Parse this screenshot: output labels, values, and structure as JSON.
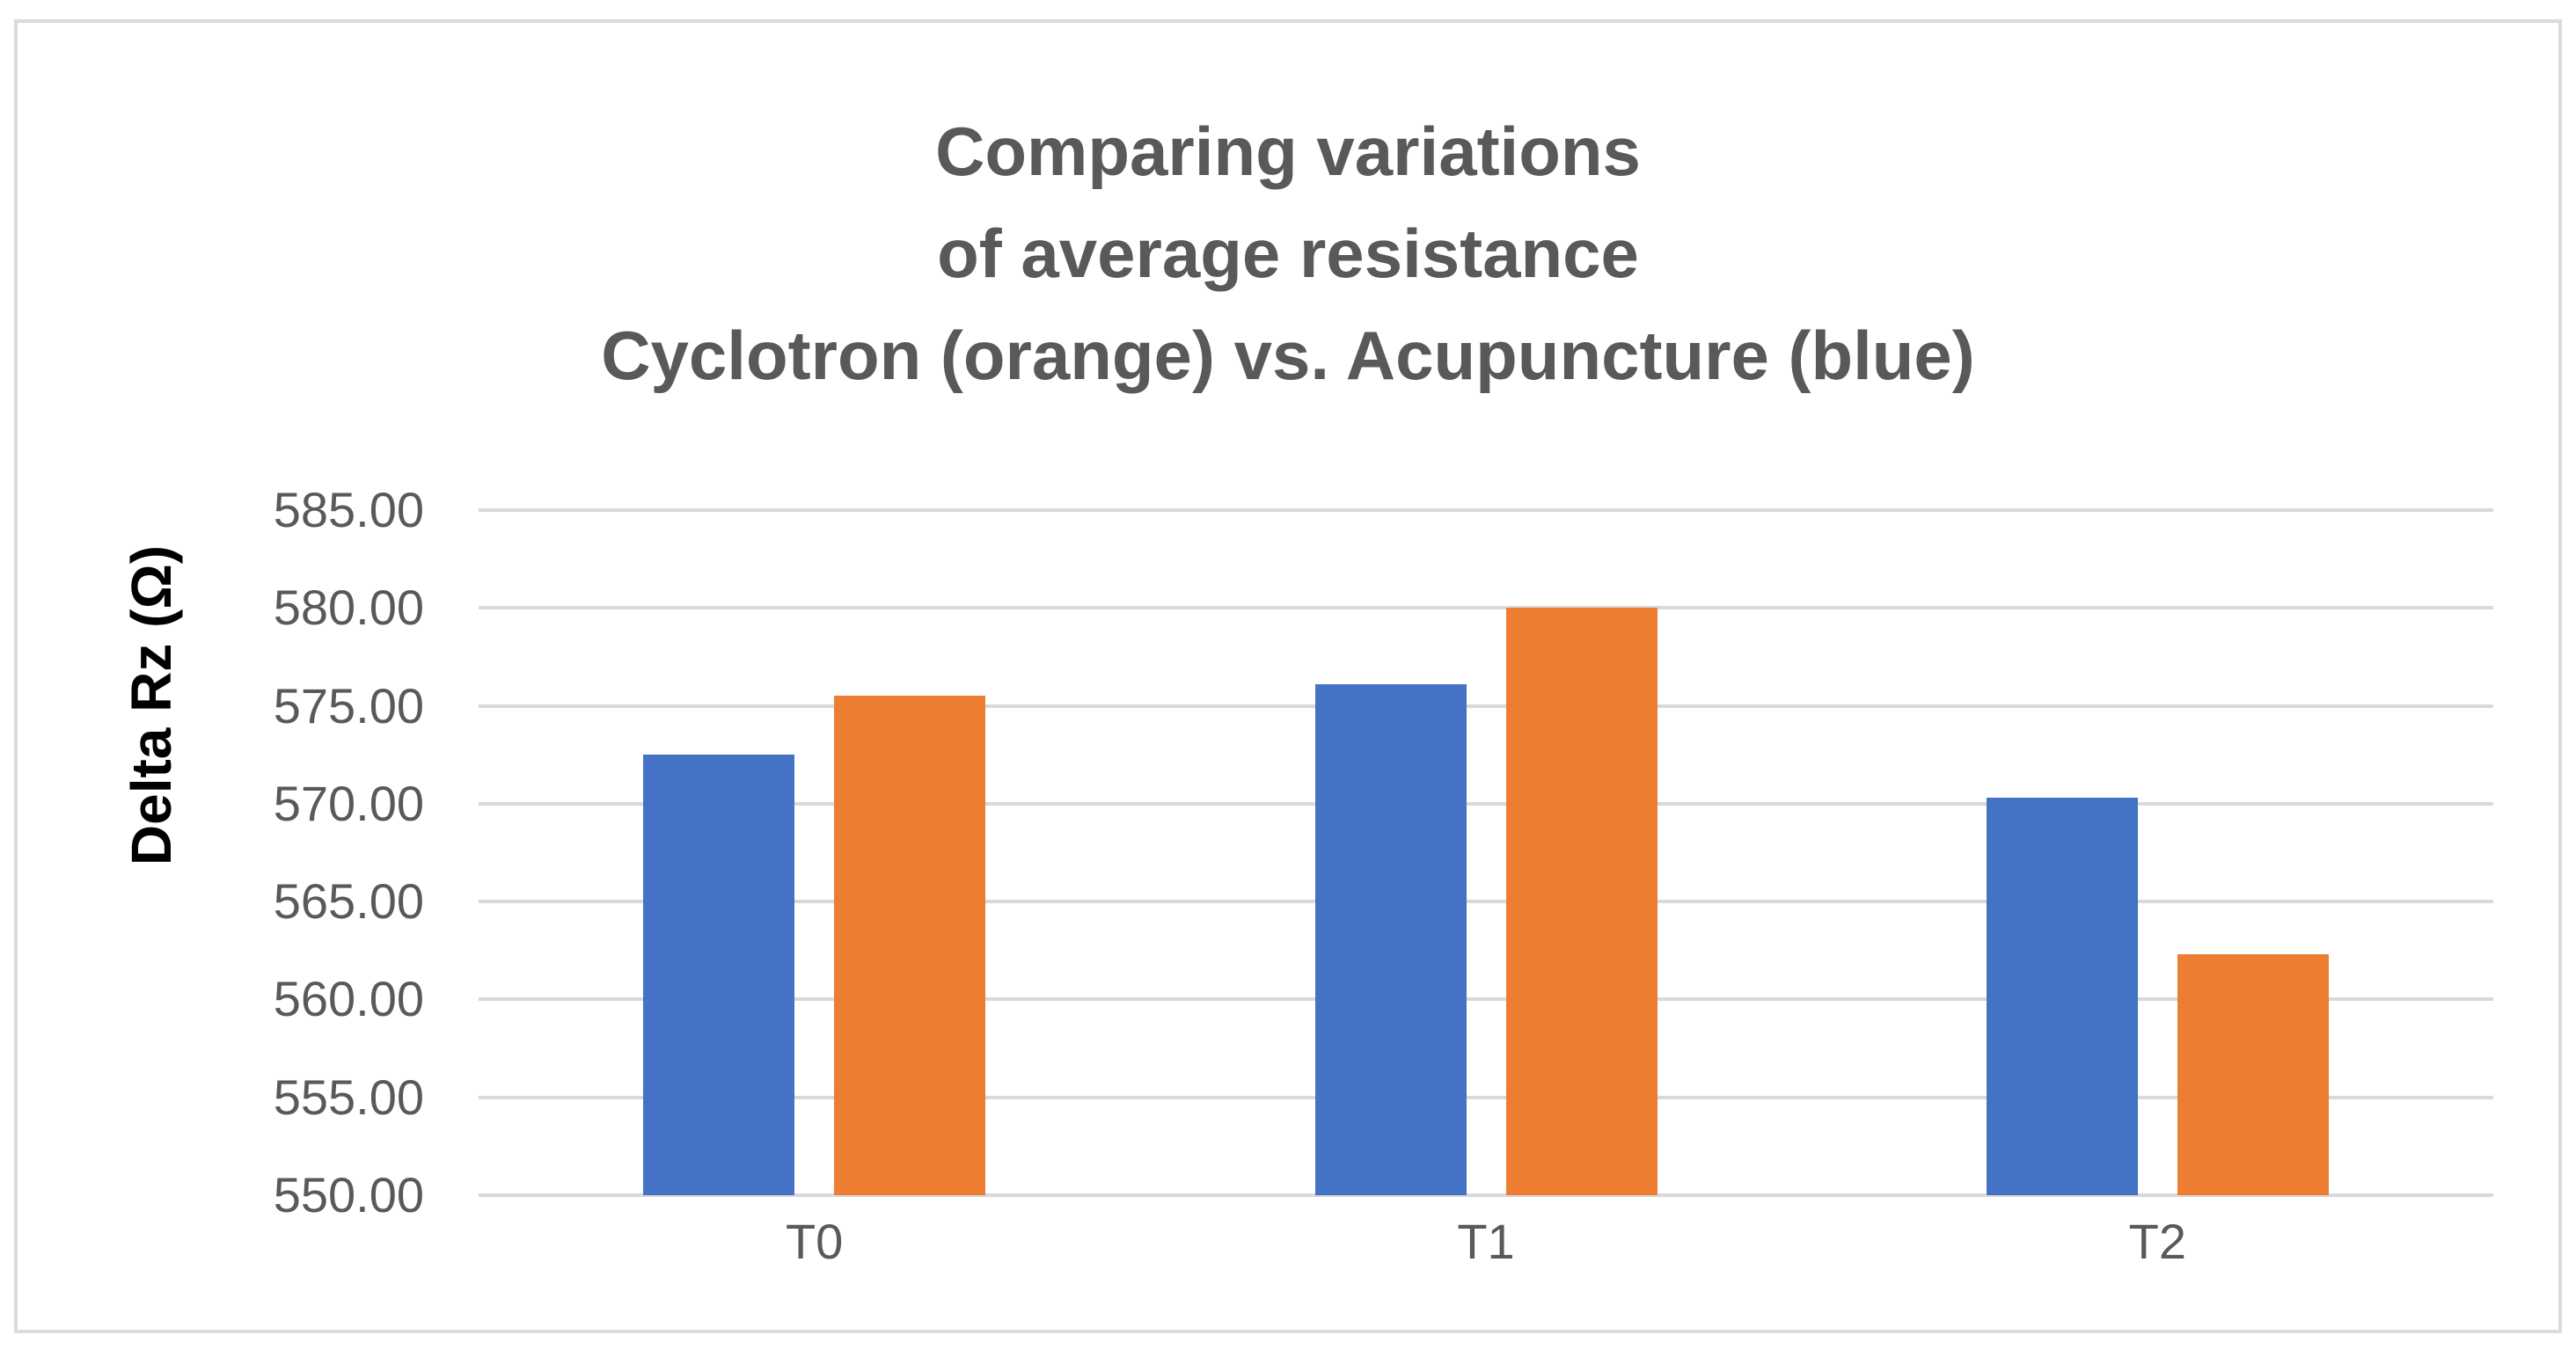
{
  "chart_data": {
    "type": "bar",
    "title": "Comparing variations of average resistance Cyclotron (orange) vs. Acupuncture (blue)",
    "title_lines": [
      "Comparing variations",
      "of average resistance",
      "Cyclotron (orange) vs. Acupuncture (blue)"
    ],
    "ylabel": "Delta Rz (Ω)",
    "xlabel": "",
    "categories": [
      "T0",
      "T1",
      "T2"
    ],
    "series": [
      {
        "name": "Acupuncture",
        "color": "#4472C4",
        "values": [
          572.5,
          576.1,
          570.3
        ]
      },
      {
        "name": "Cyclotron",
        "color": "#ED7D31",
        "values": [
          575.5,
          580.0,
          562.3
        ]
      }
    ],
    "ylim": [
      550,
      585
    ],
    "ytick_step": 5,
    "ytick_labels": [
      "585.00",
      "580.00",
      "575.00",
      "570.00",
      "565.00",
      "560.00",
      "555.00",
      "550.00"
    ],
    "grid": true,
    "legend_position": "none"
  },
  "colors": {
    "blue_series": "#4472C4",
    "orange_series": "#ED7D31",
    "gridline": "#D9D9D9",
    "frame_border": "#DBDBDB",
    "title_text": "#595959",
    "tick_text": "#595959",
    "axis_title_text": "#000000",
    "background": "#FFFFFF"
  }
}
